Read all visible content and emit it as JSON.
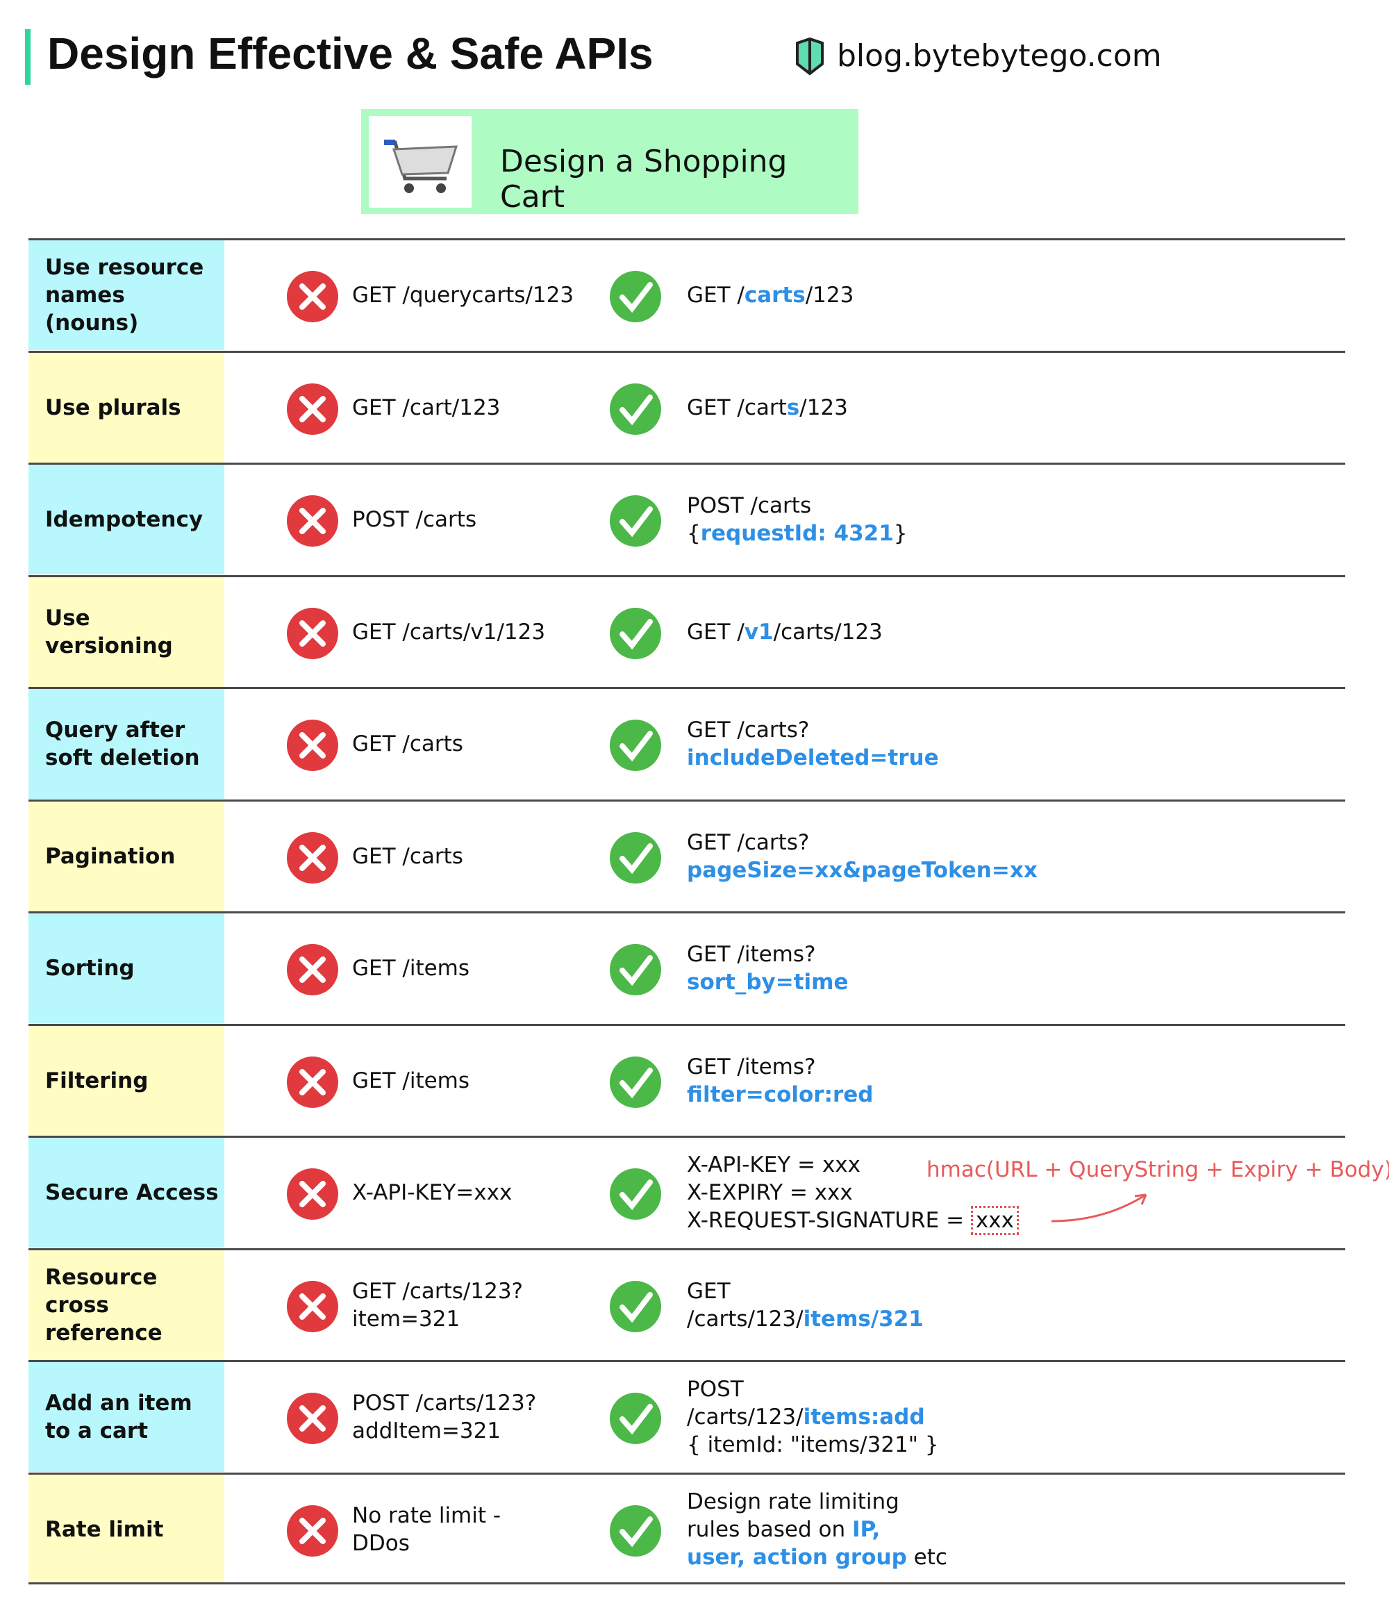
{
  "header": {
    "title": "Design Effective & Safe APIs",
    "site": "blog.bytebytego.com"
  },
  "banner": {
    "title": "Design a Shopping Cart"
  },
  "rows": [
    {
      "label": [
        "Use resource",
        "names (nouns)"
      ],
      "bad": [
        "GET /querycarts/123"
      ],
      "good": [
        [
          "GET /",
          {
            "em": "carts"
          },
          "/123"
        ]
      ]
    },
    {
      "label": [
        "Use plurals"
      ],
      "bad": [
        "GET /cart/123"
      ],
      "good": [
        [
          "GET /cart",
          {
            "em": "s"
          },
          "/123"
        ]
      ]
    },
    {
      "label": [
        "Idempotency"
      ],
      "bad": [
        "POST /carts"
      ],
      "good": [
        [
          "POST /carts"
        ],
        [
          "{",
          {
            "em": "requestId: 4321"
          },
          "}"
        ]
      ]
    },
    {
      "label": [
        "Use versioning"
      ],
      "bad": [
        "GET /carts/v1/123"
      ],
      "good": [
        [
          "GET /",
          {
            "em": "v1"
          },
          "/carts/123"
        ]
      ]
    },
    {
      "label": [
        "Query after",
        "soft deletion"
      ],
      "bad": [
        "GET /carts"
      ],
      "good": [
        [
          "GET /carts?"
        ],
        [
          {
            "em": "includeDeleted=true"
          }
        ]
      ]
    },
    {
      "label": [
        "Pagination"
      ],
      "bad": [
        "GET /carts"
      ],
      "good": [
        [
          "GET /carts?"
        ],
        [
          {
            "em": "pageSize=xx&pageToken=xx"
          }
        ]
      ]
    },
    {
      "label": [
        "Sorting"
      ],
      "bad": [
        "GET /items"
      ],
      "good": [
        [
          "GET /items?"
        ],
        [
          {
            "em": "sort_by=time"
          }
        ]
      ]
    },
    {
      "label": [
        "Filtering"
      ],
      "bad": [
        "GET /items"
      ],
      "good": [
        [
          "GET /items?"
        ],
        [
          {
            "em": "filter=color:red"
          }
        ]
      ]
    },
    {
      "label": [
        "Secure Access"
      ],
      "bad": [
        "X-API-KEY=xxx"
      ],
      "good": [
        [
          "X-API-KEY = xxx"
        ],
        [
          "X-EXPIRY = xxx"
        ],
        [
          "X-REQUEST-SIGNATURE = ",
          {
            "box": "xxx"
          }
        ]
      ],
      "note": "hmac(URL + QueryString + Expiry + Body)"
    },
    {
      "label": [
        "Resource cross",
        "reference"
      ],
      "bad": [
        "GET /carts/123?",
        "item=321"
      ],
      "good": [
        [
          "GET"
        ],
        [
          "/carts/123/",
          {
            "em": "items/321"
          }
        ]
      ]
    },
    {
      "label": [
        "Add an item",
        "to a cart"
      ],
      "bad": [
        "POST /carts/123?",
        "addItem=321"
      ],
      "good": [
        [
          "POST"
        ],
        [
          "/carts/123/",
          {
            "em": "items:add"
          }
        ],
        [
          "{ itemId: \"items/321\" }"
        ]
      ]
    },
    {
      "label": [
        "Rate limit"
      ],
      "bad": [
        "No rate limit -",
        "DDos"
      ],
      "good": [
        [
          "Design rate limiting"
        ],
        [
          "rules based on ",
          {
            "em": "IP,"
          }
        ],
        [
          {
            "em": "user, action group"
          },
          " etc"
        ]
      ]
    }
  ]
}
